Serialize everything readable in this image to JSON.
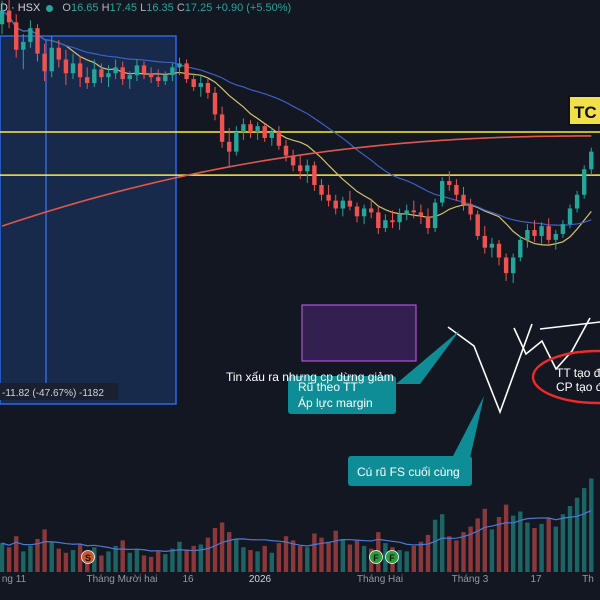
{
  "header": {
    "symbol": "D · HSX",
    "o_label": "O",
    "o_value": "16.65",
    "h_label": "H",
    "h_value": "17.45",
    "l_label": "L",
    "l_value": "16.35",
    "c_label": "C",
    "c_value": "17.25",
    "change": "+0.90 (+5.50%)"
  },
  "measure_label": "-11.82 (-47.67%) -1182",
  "annotations": {
    "tc_badge": "TC",
    "bad_news": "Tin xấu ra nhưng cp dừng giảm",
    "callout_1_line1": "Rũ theo TT",
    "callout_1_line2": "Áp lực margin",
    "callout_2": "Cú rũ FS cuối cùng",
    "ellipse_line1": "TT tạo đ",
    "ellipse_line2": "CP tạo đ"
  },
  "events": [
    "S",
    "F",
    "F"
  ],
  "colors": {
    "background": "#131722",
    "up": "#26a69a",
    "down": "#ef5350",
    "ma_short": "#d4c06a",
    "ma_mid": "#3f5fc8",
    "ma_long": "#e2574c",
    "level_line": "#ffeb3b",
    "callout": "#0f8d96"
  },
  "chart_data": {
    "type": "candlestick",
    "x_ticks": [
      "ng 11",
      "Tháng Mười hai",
      "16",
      "2026",
      "Tháng Hai",
      "Tháng 3",
      "17",
      "Th"
    ],
    "price_range_in_view": [
      8.5,
      25
    ],
    "horizontal_levels": [
      20.6,
      18.4
    ],
    "candles": [
      [
        26.1,
        27.3,
        25.6,
        26.8
      ],
      [
        26.8,
        27.6,
        25.9,
        26.2
      ],
      [
        26.2,
        26.6,
        24.4,
        24.8
      ],
      [
        24.8,
        25.6,
        23.8,
        25.2
      ],
      [
        25.2,
        26.3,
        24.9,
        25.9
      ],
      [
        25.9,
        26.1,
        24.2,
        24.6
      ],
      [
        24.6,
        25.1,
        23.2,
        23.7
      ],
      [
        23.7,
        25.5,
        23.4,
        24.9
      ],
      [
        24.9,
        25.3,
        23.9,
        24.3
      ],
      [
        24.3,
        24.8,
        23.0,
        23.6
      ],
      [
        23.6,
        24.6,
        23.3,
        24.1
      ],
      [
        24.1,
        24.5,
        22.9,
        23.4
      ],
      [
        23.4,
        23.9,
        22.8,
        23.1
      ],
      [
        23.1,
        24.3,
        22.9,
        23.8
      ],
      [
        23.8,
        24.1,
        23.1,
        23.4
      ],
      [
        23.4,
        24.0,
        22.9,
        23.6
      ],
      [
        23.6,
        24.3,
        23.3,
        23.9
      ],
      [
        23.9,
        24.2,
        23.0,
        23.3
      ],
      [
        23.3,
        23.7,
        22.8,
        23.5
      ],
      [
        23.5,
        24.3,
        23.2,
        24.0
      ],
      [
        24.0,
        24.2,
        23.3,
        23.6
      ],
      [
        23.6,
        23.9,
        23.1,
        23.4
      ],
      [
        23.4,
        23.8,
        22.9,
        23.2
      ],
      [
        23.2,
        23.7,
        23.0,
        23.5
      ],
      [
        23.5,
        24.1,
        23.2,
        23.9
      ],
      [
        23.9,
        24.4,
        23.5,
        24.1
      ],
      [
        24.1,
        24.3,
        23.1,
        23.3
      ],
      [
        23.3,
        23.6,
        22.7,
        22.9
      ],
      [
        22.9,
        23.5,
        22.4,
        23.1
      ],
      [
        23.1,
        23.3,
        22.3,
        22.6
      ],
      [
        22.6,
        22.9,
        21.2,
        21.5
      ],
      [
        21.5,
        21.9,
        19.8,
        20.1
      ],
      [
        20.1,
        20.8,
        18.8,
        19.6
      ],
      [
        19.6,
        20.9,
        19.4,
        20.6
      ],
      [
        20.6,
        21.3,
        20.2,
        21.0
      ],
      [
        21.0,
        21.2,
        20.3,
        20.6
      ],
      [
        20.6,
        21.1,
        20.2,
        20.9
      ],
      [
        20.9,
        21.0,
        20.1,
        20.3
      ],
      [
        20.3,
        20.8,
        19.9,
        20.6
      ],
      [
        20.6,
        20.9,
        19.7,
        19.9
      ],
      [
        19.9,
        20.2,
        19.1,
        19.4
      ],
      [
        19.4,
        19.7,
        18.6,
        18.9
      ],
      [
        18.9,
        19.4,
        18.2,
        18.6
      ],
      [
        18.6,
        19.2,
        18.0,
        18.9
      ],
      [
        18.9,
        19.1,
        17.6,
        17.9
      ],
      [
        17.9,
        18.2,
        17.1,
        17.4
      ],
      [
        17.4,
        17.9,
        16.8,
        17.1
      ],
      [
        17.1,
        17.4,
        16.4,
        16.7
      ],
      [
        16.7,
        17.3,
        16.3,
        17.1
      ],
      [
        17.1,
        17.6,
        16.6,
        16.8
      ],
      [
        16.8,
        17.0,
        16.0,
        16.3
      ],
      [
        16.3,
        16.9,
        15.9,
        16.7
      ],
      [
        16.7,
        17.2,
        16.2,
        16.5
      ],
      [
        16.5,
        16.8,
        15.4,
        15.7
      ],
      [
        15.7,
        16.4,
        15.5,
        16.1
      ],
      [
        16.1,
        16.6,
        15.7,
        16.0
      ],
      [
        16.0,
        16.7,
        15.6,
        16.4
      ],
      [
        16.4,
        16.9,
        16.1,
        16.6
      ],
      [
        16.6,
        17.1,
        16.2,
        16.5
      ],
      [
        16.5,
        16.9,
        15.9,
        16.3
      ],
      [
        16.3,
        16.7,
        15.4,
        15.7
      ],
      [
        15.7,
        17.2,
        15.5,
        17.0
      ],
      [
        17.0,
        18.3,
        16.8,
        18.1
      ],
      [
        18.1,
        18.6,
        17.6,
        17.9
      ],
      [
        17.9,
        18.2,
        17.1,
        17.4
      ],
      [
        17.4,
        17.8,
        16.6,
        16.9
      ],
      [
        16.9,
        17.2,
        16.1,
        16.4
      ],
      [
        16.4,
        16.6,
        15.1,
        15.3
      ],
      [
        15.3,
        15.8,
        14.4,
        14.7
      ],
      [
        14.7,
        15.2,
        14.2,
        14.9
      ],
      [
        14.9,
        15.1,
        13.8,
        14.2
      ],
      [
        14.2,
        14.4,
        13.0,
        13.4
      ],
      [
        13.4,
        14.4,
        12.9,
        14.2
      ],
      [
        14.2,
        15.3,
        14.0,
        15.1
      ],
      [
        15.1,
        15.9,
        14.7,
        15.6
      ],
      [
        15.6,
        16.1,
        15.0,
        15.3
      ],
      [
        15.3,
        16.0,
        14.9,
        15.8
      ],
      [
        15.8,
        16.2,
        14.9,
        15.1
      ],
      [
        15.1,
        15.6,
        14.6,
        15.4
      ],
      [
        15.4,
        16.1,
        15.2,
        15.9
      ],
      [
        15.9,
        16.9,
        15.7,
        16.7
      ],
      [
        16.7,
        17.6,
        16.5,
        17.4
      ],
      [
        17.4,
        18.9,
        17.2,
        18.7
      ],
      [
        18.7,
        19.8,
        18.4,
        19.6
      ]
    ],
    "volume": [
      2.1,
      1.8,
      2.6,
      1.5,
      1.9,
      2.4,
      3.1,
      2.2,
      1.7,
      1.4,
      1.6,
      2.0,
      1.3,
      1.8,
      1.2,
      1.5,
      1.9,
      2.3,
      1.4,
      1.6,
      1.2,
      1.1,
      1.5,
      1.3,
      1.7,
      2.2,
      1.6,
      1.9,
      2.0,
      2.5,
      3.2,
      3.6,
      2.9,
      2.4,
      1.8,
      1.6,
      1.5,
      1.9,
      1.4,
      2.1,
      2.6,
      2.3,
      1.9,
      1.8,
      2.8,
      2.5,
      2.2,
      3.0,
      2.4,
      2.0,
      2.3,
      1.9,
      1.7,
      2.9,
      2.1,
      1.8,
      1.6,
      1.5,
      1.9,
      2.2,
      2.7,
      3.8,
      4.2,
      2.6,
      2.3,
      2.9,
      3.3,
      3.9,
      4.6,
      3.1,
      4.0,
      4.9,
      4.1,
      4.4,
      3.6,
      3.2,
      3.5,
      3.9,
      3.3,
      4.2,
      4.8,
      5.4,
      6.1,
      6.8
    ]
  }
}
